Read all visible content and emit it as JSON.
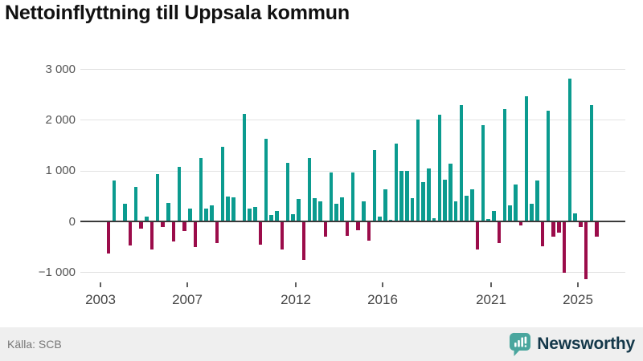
{
  "title": "Nettoinflyttning till Uppsala kommun",
  "footer": {
    "source": "Källa: SCB",
    "brand": "Newsworthy"
  },
  "colors": {
    "positive": "#0b9b8f",
    "negative": "#9b0c4a",
    "grid": "#e2e2e2",
    "zero_line": "#3a3a3a",
    "title": "#111111",
    "y_label": "#555555",
    "x_label": "#454545",
    "footer_bg": "#efefef",
    "source_text": "#767676",
    "brand_text": "#14384a",
    "brand_icon": "#4aa69e"
  },
  "chart_data": {
    "type": "bar",
    "title": "Nettoinflyttning till Uppsala kommun",
    "frequency": "quarterly",
    "start_period": "2003 Q1",
    "end_period": "2025 Q4",
    "values": [
      0,
      -620,
      810,
      0,
      350,
      -460,
      680,
      -120,
      100,
      -540,
      940,
      -90,
      370,
      -380,
      1080,
      -170,
      250,
      -490,
      1250,
      260,
      310,
      -410,
      1470,
      490,
      480,
      0,
      2110,
      250,
      290,
      -440,
      1630,
      120,
      200,
      -540,
      1150,
      140,
      450,
      -740,
      1250,
      460,
      390,
      -280,
      970,
      350,
      470,
      -270,
      960,
      -150,
      390,
      -370,
      1400,
      100,
      630,
      40,
      1530,
      1000,
      1000,
      460,
      2000,
      770,
      1050,
      60,
      2100,
      830,
      1140,
      390,
      2290,
      510,
      640,
      -540,
      1890,
      50,
      210,
      -410,
      2210,
      310,
      730,
      -70,
      2470,
      350,
      800,
      -480,
      2180,
      -280,
      -200,
      -1000,
      2820,
      160,
      -90,
      -1120,
      2290,
      -290
    ],
    "y_ticks": [
      3000,
      2000,
      1000,
      0,
      -1000
    ],
    "y_tick_labels": [
      "3 000",
      "2 000",
      "1 000",
      "0",
      "−1 000"
    ],
    "x_tick_years": [
      2003,
      2007,
      2012,
      2016,
      2021,
      2025
    ],
    "x_tick_labels": [
      "2003",
      "2007",
      "2012",
      "2016",
      "2021",
      "2025"
    ],
    "ylim": [
      -1300,
      3200
    ],
    "grid": true,
    "legend": false
  }
}
